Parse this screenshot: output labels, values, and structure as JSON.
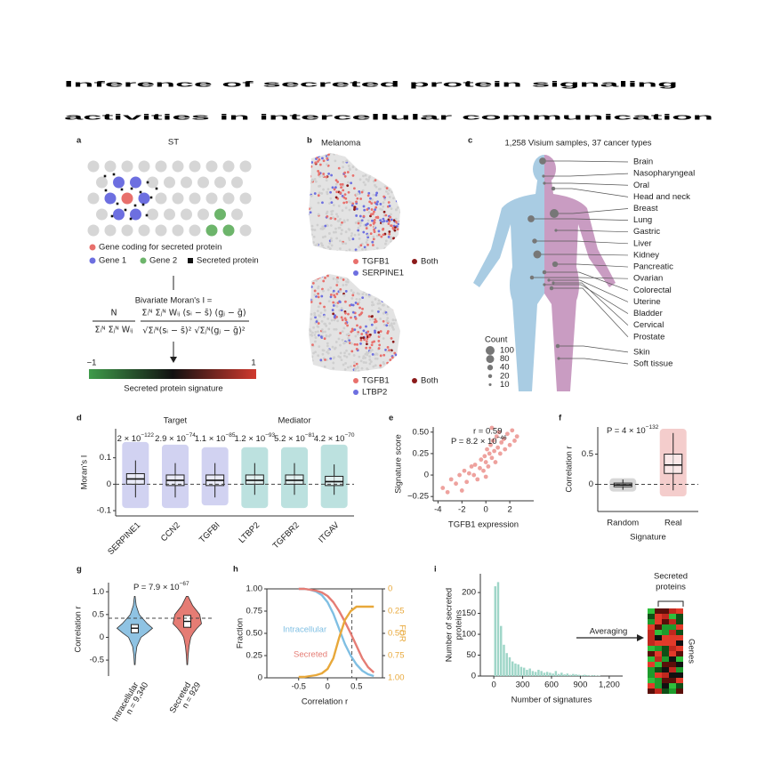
{
  "title_lines": [
    "Inference of secreted protein signaling",
    "activities in intercellular communication"
  ],
  "panel_a": {
    "label": "a",
    "heading": "ST",
    "legend": [
      "Gene coding for secreted protein",
      "Gene 1",
      "Gene 2",
      "Secreted protein"
    ],
    "formula_title": "Bivariate Moran's I =",
    "formula": {
      "left_num": "N",
      "left_den": "Σᵢᴺ Σⱼᴺ Wᵢⱼ",
      "right_num": "Σᵢᴺ Σⱼᴺ Wᵢⱼ (sᵢ − s̄) (gⱼ − ḡ)",
      "right_den": "√Σᵢᴺ(sᵢ − s̄)²  √Σⱼᴺ(gⱼ − ḡ)²"
    },
    "colorbar": {
      "ticks": [
        {
          "value": -1,
          "label": "−1"
        },
        1
      ],
      "label": "Secreted protein signature"
    }
  },
  "panel_b": {
    "label": "b",
    "title": "Melanoma",
    "maps": [
      {
        "legend": [
          "TGFB1",
          "Both",
          "SERPINE1"
        ]
      },
      {
        "legend": [
          "TGFB1",
          "Both",
          "LTBP2"
        ]
      }
    ],
    "legend_colors": [
      "#e8706c",
      "#8b1a1a",
      "#6d6fe0"
    ]
  },
  "panel_c": {
    "label": "c",
    "title": "1,258 Visium samples, 37 cancer types",
    "types": [
      {
        "name": "Brain",
        "count": 60
      },
      {
        "name": "Nasopharyngeal",
        "count": 10
      },
      {
        "name": "Oral",
        "count": 10
      },
      {
        "name": "Head and neck",
        "count": 20
      },
      {
        "name": "Breast",
        "count": 100
      },
      {
        "name": "Lung",
        "count": 60
      },
      {
        "name": "Gastric",
        "count": 10
      },
      {
        "name": "Liver",
        "count": 30
      },
      {
        "name": "Kidney",
        "count": 80
      },
      {
        "name": "Pancreatic",
        "count": 40
      },
      {
        "name": "Ovarian",
        "count": 20
      },
      {
        "name": "Colorectal",
        "count": 20
      },
      {
        "name": "Uterine",
        "count": 10
      },
      {
        "name": "Bladder",
        "count": 10
      },
      {
        "name": "Cervical",
        "count": 10
      },
      {
        "name": "Prostate",
        "count": 20
      },
      {
        "name": "Skin",
        "count": 20
      },
      {
        "name": "Soft tissue",
        "count": 10
      }
    ],
    "legend_title": "Count",
    "legend_sizes": [
      100,
      80,
      40,
      20,
      10
    ]
  },
  "chart_data": [
    {
      "type": "box",
      "panel": "d",
      "ylabel": "Moran's I",
      "categories": [
        "SERPINE1",
        "CCN2",
        "TGFBI",
        "LTBP2",
        "TGFBR2",
        "ITGAV"
      ],
      "groups": [
        {
          "name": "Target",
          "color": "#7a7fd6"
        },
        {
          "name": "Mediator",
          "color": "#40a8a2"
        }
      ],
      "group_of": [
        0,
        0,
        0,
        1,
        1,
        1
      ],
      "min": [
        -0.09,
        -0.09,
        -0.08,
        -0.09,
        -0.09,
        -0.09
      ],
      "whisker_low": [
        -0.05,
        -0.05,
        -0.05,
        -0.04,
        -0.04,
        -0.04
      ],
      "q1": [
        0.0,
        -0.005,
        -0.005,
        0.0,
        0.0,
        -0.005
      ],
      "median": [
        0.02,
        0.015,
        0.015,
        0.015,
        0.015,
        0.01
      ],
      "q3": [
        0.04,
        0.035,
        0.035,
        0.035,
        0.035,
        0.03
      ],
      "whisker_high": [
        0.09,
        0.08,
        0.08,
        0.08,
        0.08,
        0.075
      ],
      "max": [
        0.16,
        0.15,
        0.14,
        0.14,
        0.14,
        0.15
      ],
      "p_labels": [
        {
          "base": "2 × 10",
          "exp": "−122"
        },
        {
          "base": "2.9 × 10",
          "exp": "−74"
        },
        {
          "base": "1.1 × 10",
          "exp": "−85"
        },
        {
          "base": "1.2 × 10",
          "exp": "−93"
        },
        {
          "base": "5.2 × 10",
          "exp": "−81"
        },
        {
          "base": "4.2 × 10",
          "exp": "−70"
        }
      ],
      "reference_line": 0,
      "ylim": [
        -0.12,
        0.21
      ],
      "yticks": [
        -0.1,
        0,
        0.1
      ]
    },
    {
      "type": "scatter",
      "panel": "e",
      "xlabel": "TGFB1 expression",
      "ylabel": "Signature score",
      "color": "#e8837e",
      "annotations": [
        "r = 0.59"
      ],
      "p_label": {
        "base": "P = 8.2 × 10",
        "exp": "−46"
      },
      "x": [
        -3.6,
        -3.2,
        -2.9,
        -2.5,
        -2.2,
        -2.0,
        -1.8,
        -1.6,
        -1.4,
        -1.2,
        -1.0,
        -0.9,
        -0.7,
        -0.5,
        -0.4,
        -0.2,
        -0.1,
        0,
        0.1,
        0.2,
        0.3,
        0.4,
        0.5,
        0.6,
        0.7,
        0.8,
        0.9,
        1.0,
        1.1,
        1.2,
        1.3,
        1.5,
        1.6,
        1.8,
        2.0,
        2.2,
        2.4,
        2.6,
        0.0,
        0.5
      ],
      "y": [
        -0.15,
        -0.2,
        -0.05,
        -0.1,
        0.0,
        -0.18,
        0.05,
        -0.08,
        0.02,
        0.1,
        0.0,
        0.12,
        -0.05,
        0.08,
        0.18,
        0.05,
        0.22,
        0.15,
        0.3,
        0.1,
        0.25,
        0.35,
        0.2,
        0.4,
        0.28,
        0.15,
        0.45,
        0.32,
        0.5,
        0.25,
        0.38,
        0.42,
        0.3,
        0.48,
        0.35,
        0.52,
        0.4,
        0.45,
        -0.02,
        0.55
      ],
      "xlim": [
        -4.4,
        4.0
      ],
      "xticks": [
        -4,
        -2,
        0,
        2
      ],
      "ylim": [
        -0.3,
        0.56
      ],
      "yticks": [
        {
          "value": -0.25,
          "label": "−0.25"
        },
        0,
        0.25,
        {
          "value": 0.5,
          "label": "0.50"
        }
      ]
    },
    {
      "type": "box",
      "panel": "f",
      "xlabel": "Signature",
      "ylabel": "Correlation r",
      "categories": [
        "Random",
        "Real"
      ],
      "colors": [
        "#8c8c8c",
        "#e0706c"
      ],
      "min": [
        -0.12,
        -0.2
      ],
      "whisker_low": [
        -0.09,
        -0.1
      ],
      "q1": [
        -0.04,
        0.18
      ],
      "median": [
        -0.01,
        0.32
      ],
      "q3": [
        0.02,
        0.5
      ],
      "whisker_high": [
        0.08,
        0.85
      ],
      "max": [
        0.1,
        0.92
      ],
      "p_label": {
        "base": "P = 4 × 10",
        "exp": "−132"
      },
      "reference_line": 0,
      "ylim": [
        -0.45,
        0.95
      ],
      "yticks": [
        0,
        0.5
      ]
    },
    {
      "type": "violin",
      "panel": "g",
      "ylabel": "Correlation r",
      "categories": [
        "Intracellular",
        "Secreted"
      ],
      "n_labels": [
        "n = 9,340",
        "n = 929"
      ],
      "colors": [
        "#8fc3e3",
        "#e57c74"
      ],
      "density_y": [
        -0.6,
        -0.4,
        -0.2,
        0,
        0.1,
        0.2,
        0.3,
        0.5,
        0.7,
        0.9
      ],
      "densities": [
        [
          0.02,
          0.05,
          0.12,
          0.35,
          0.7,
          1.0,
          0.7,
          0.25,
          0.08,
          0.02
        ],
        [
          0.02,
          0.05,
          0.1,
          0.2,
          0.35,
          0.55,
          0.8,
          0.7,
          0.3,
          0.05
        ]
      ],
      "q1": [
        0.1,
        0.22
      ],
      "median": [
        0.2,
        0.35
      ],
      "q3": [
        0.28,
        0.48
      ],
      "p_label": {
        "base": "P = 7.9 × 10",
        "exp": "−67"
      },
      "reference_line": 0.42,
      "ylim": [
        -0.85,
        1.2
      ],
      "yticks": [
        -0.5,
        0,
        0.5,
        {
          "value": 1,
          "label": "1.0"
        }
      ]
    },
    {
      "type": "line",
      "panel": "h",
      "xlabel": "Correlation r",
      "ylabel": "Fraction",
      "x": [
        -0.5,
        -0.4,
        -0.3,
        -0.2,
        -0.1,
        0,
        0.1,
        0.2,
        0.3,
        0.4,
        0.5,
        0.6,
        0.7,
        0.8
      ],
      "series": [
        {
          "name": "Intracellular",
          "color": "#7fbfe3",
          "values": [
            1,
            1,
            0.99,
            0.97,
            0.93,
            0.85,
            0.72,
            0.55,
            0.38,
            0.25,
            0.15,
            0.08,
            0.04,
            0.02
          ]
        },
        {
          "name": "Secreted",
          "color": "#e57c74",
          "values": [
            1,
            1,
            0.99,
            0.98,
            0.96,
            0.92,
            0.85,
            0.75,
            0.63,
            0.5,
            0.36,
            0.22,
            0.12,
            0.06
          ]
        },
        {
          "name": "FDR",
          "color": "#e8a83a",
          "axis": "y2",
          "values": [
            0.99,
            0.99,
            0.98,
            0.97,
            0.95,
            0.9,
            0.78,
            0.55,
            0.35,
            0.25,
            0.2,
            0.2,
            0.2,
            0.2
          ]
        }
      ],
      "reference_x": 0.42,
      "xlim": [
        -1.05,
        0.95
      ],
      "xticks": [
        -0.5,
        0,
        0.5
      ],
      "ylim": [
        0,
        1
      ],
      "yticks": [
        0,
        0.25,
        {
          "value": 0.5,
          "label": "0.50"
        },
        0.75,
        {
          "value": 1,
          "label": "1.00"
        }
      ],
      "y2lim": [
        1,
        0
      ],
      "y2ticks": [
        0,
        0.25,
        {
          "value": 0.5,
          "label": "0.50"
        },
        0.75,
        {
          "value": 1,
          "label": "1.00"
        }
      ]
    },
    {
      "type": "histogram",
      "panel": "i",
      "xlabel": "Number of signatures",
      "ylabel_lines": [
        "Number of secreted",
        "proteins"
      ],
      "color": "#9fd6c8",
      "bins": [
        0,
        30,
        60,
        90,
        120,
        150,
        180,
        210,
        240,
        270,
        300,
        330,
        360,
        390,
        420,
        450,
        480,
        510,
        540,
        570,
        600,
        630,
        660,
        690,
        720,
        750,
        780,
        810,
        840,
        870,
        900,
        930,
        960,
        990,
        1020,
        1050,
        1080,
        1110
      ],
      "counts": [
        215,
        225,
        120,
        75,
        55,
        45,
        35,
        30,
        28,
        22,
        20,
        15,
        18,
        12,
        10,
        15,
        12,
        8,
        10,
        8,
        6,
        12,
        5,
        8,
        4,
        6,
        3,
        5,
        4,
        3,
        2,
        3,
        2,
        1,
        2,
        1,
        1
      ],
      "xlim": [
        -140,
        1340
      ],
      "xticks": [
        0,
        300,
        600,
        900,
        {
          "value": 1200,
          "label": "1,200"
        }
      ],
      "ylim": [
        0,
        245
      ],
      "yticks": [
        0,
        50,
        100,
        150,
        200
      ]
    }
  ],
  "panel_i_schematic": {
    "arrow_label": "Averaging",
    "header_lines": [
      "Secreted",
      "proteins"
    ],
    "side_label": "Genes"
  }
}
